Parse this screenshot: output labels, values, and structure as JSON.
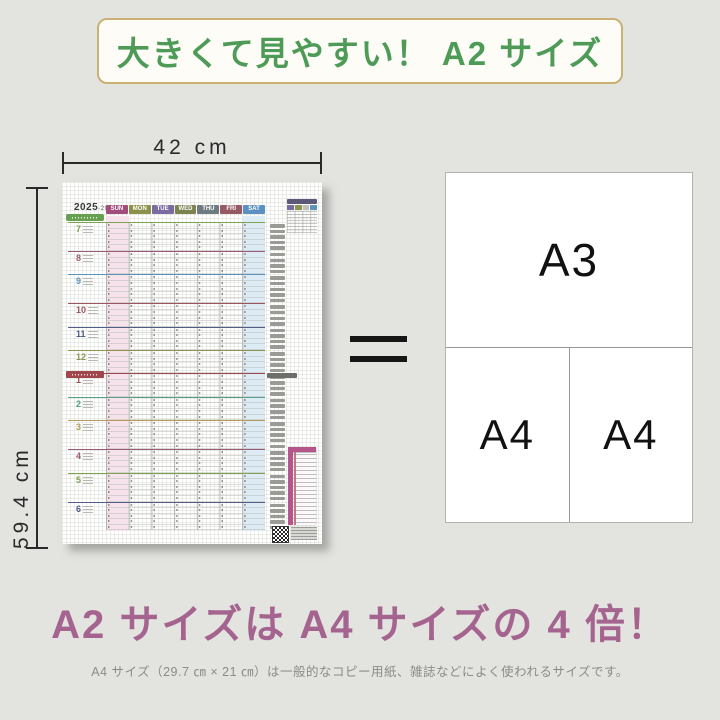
{
  "banner": {
    "text": "大きくて見やすい！ A2 サイズ",
    "text_color": "#4e9b58",
    "border_color": "#c8b171"
  },
  "dimensions": {
    "width_label": "42 cm",
    "height_label": "59.4 cm"
  },
  "calendar": {
    "year_label": "2025",
    "year_suffix": "-2026",
    "day_headers": [
      {
        "label": "SUN",
        "color": "#a14e7c"
      },
      {
        "label": "MON",
        "color": "#8d9048"
      },
      {
        "label": "TUE",
        "color": "#7a6ba1"
      },
      {
        "label": "WED",
        "color": "#7c8350"
      },
      {
        "label": "THU",
        "color": "#6e7b80"
      },
      {
        "label": "FRI",
        "color": "#955a64"
      },
      {
        "label": "SAT",
        "color": "#5b91c0"
      }
    ],
    "sunday_column_color": "#f5e2ea",
    "saturday_column_color": "#dcebf4",
    "months": [
      {
        "num": "7",
        "weeks": 5,
        "color": "#7ca34f"
      },
      {
        "num": "8",
        "weeks": 4,
        "color": "#9b5a77"
      },
      {
        "num": "9",
        "weeks": 5,
        "color": "#5d93bb"
      },
      {
        "num": "10",
        "weeks": 4,
        "color": "#99565e"
      },
      {
        "num": "11",
        "weeks": 4,
        "color": "#4f5d88"
      },
      {
        "num": "12",
        "weeks": 4,
        "color": "#8f9350"
      },
      {
        "num": "1",
        "weeks": 4,
        "color": "#a04a50"
      },
      {
        "num": "2",
        "weeks": 4,
        "color": "#58a08a"
      },
      {
        "num": "3",
        "weeks": 5,
        "color": "#b89a5a"
      },
      {
        "num": "4",
        "weeks": 4,
        "color": "#9b5a77"
      },
      {
        "num": "5",
        "weeks": 5,
        "color": "#7ca34f"
      },
      {
        "num": "6",
        "weeks": 5,
        "color": "#4f5d88"
      }
    ],
    "legend_mini_colors": [
      "#7a6ba1",
      "#8f9350",
      "#c0bfbc",
      "#5d93bb"
    ],
    "holiday_panel_color": "#b4568c"
  },
  "sheet_panel": {
    "a3_label": "A3",
    "a4_left_label": "A4",
    "a4_right_label": "A4"
  },
  "headline": {
    "text": "A2 サイズは A4 サイズの 4 倍！",
    "color": "#a5648f"
  },
  "caption": {
    "text": "A4 サイズ（29.7 ㎝ × 21 ㎝）は一般的なコピー用紙、雑誌などによく使われるサイズです。"
  }
}
